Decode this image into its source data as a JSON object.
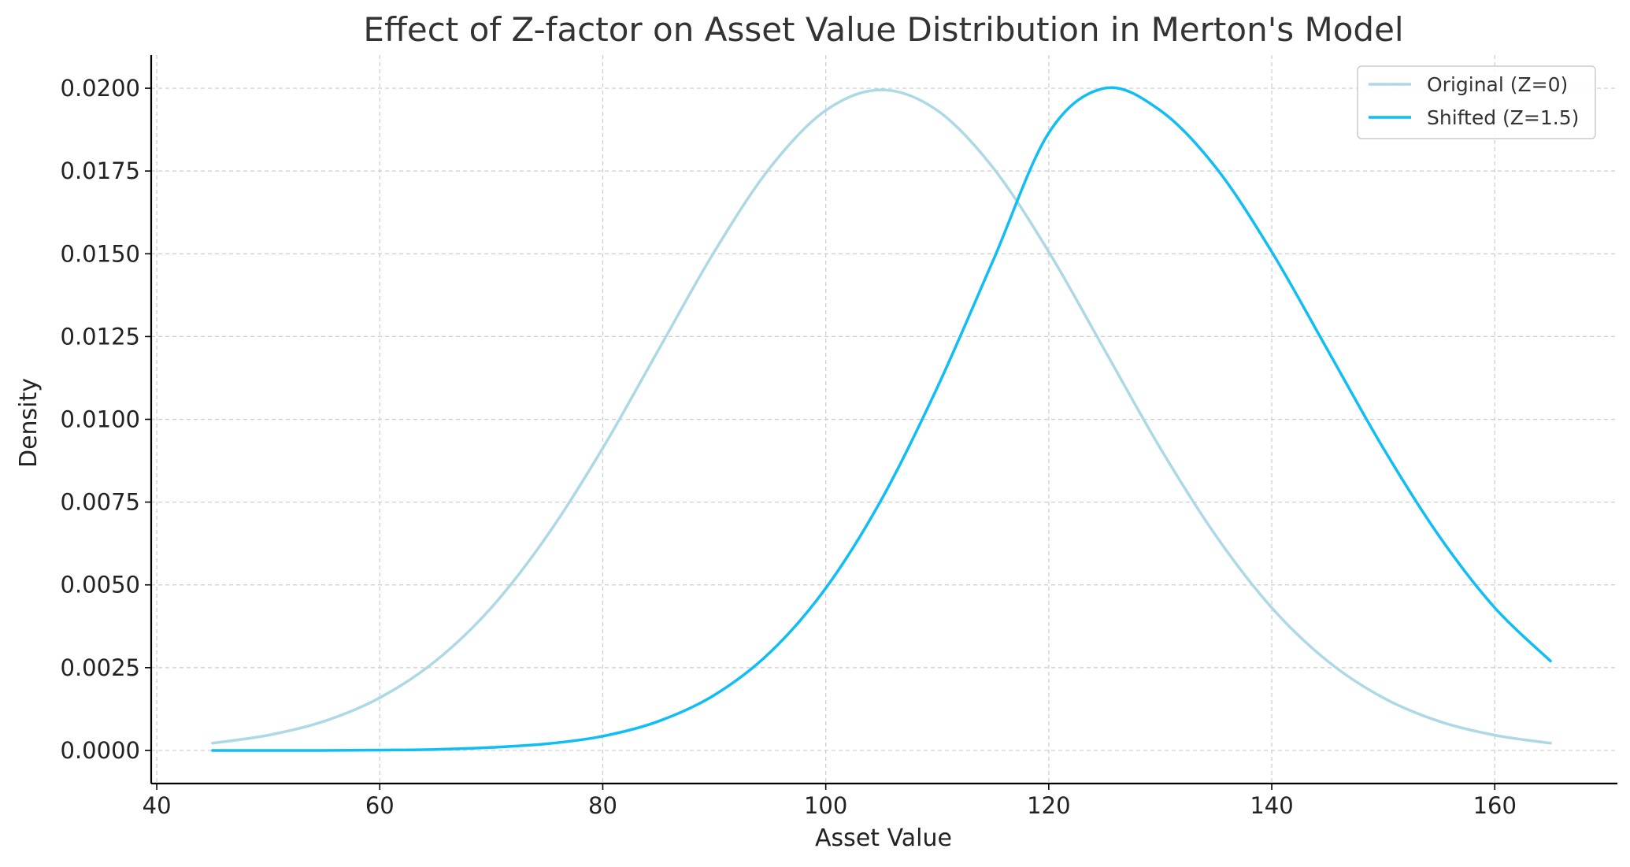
{
  "chart_data": {
    "type": "line",
    "title": "Effect of Z-factor on Asset Value Distribution in Merton's Model",
    "xlabel": "Asset Value",
    "ylabel": "Density",
    "xlim": [
      39.5,
      171
    ],
    "ylim": [
      -0.001,
      0.021
    ],
    "xticks": [
      40,
      60,
      80,
      100,
      120,
      140,
      160
    ],
    "xtick_labels": [
      "40",
      "60",
      "80",
      "100",
      "120",
      "140",
      "160"
    ],
    "yticks": [
      0,
      0.0025,
      0.005,
      0.0075,
      0.01,
      0.0125,
      0.015,
      0.0175,
      0.02
    ],
    "ytick_labels": [
      "0.0000",
      "0.0025",
      "0.0050",
      "0.0075",
      "0.0100",
      "0.0125",
      "0.0150",
      "0.0175",
      "0.0200"
    ],
    "grid": true,
    "legend_position": "top-right",
    "x": [
      45,
      50,
      55,
      60,
      65,
      70,
      75,
      80,
      85,
      90,
      95,
      100,
      105,
      110,
      115,
      120,
      125,
      130,
      135,
      140,
      145,
      150,
      155,
      160,
      165
    ],
    "series": [
      {
        "name": "Original (Z=0)",
        "color": "#add8e6",
        "values": [
          0.00022,
          0.00046,
          0.00088,
          0.00159,
          0.0027,
          0.00431,
          0.00648,
          0.00913,
          0.0121,
          0.01506,
          0.0176,
          0.01933,
          0.01995,
          0.01933,
          0.0176,
          0.01506,
          0.0121,
          0.00913,
          0.00648,
          0.00431,
          0.0027,
          0.00159,
          0.00088,
          0.00046,
          0.00022
        ]
      },
      {
        "name": "Shifted (Z=1.5)",
        "color": "#10bef5",
        "values": [
          0.0,
          0.0,
          0.0,
          1e-05,
          3e-05,
          9e-05,
          0.0002,
          0.00043,
          0.00088,
          0.00167,
          0.00296,
          0.0049,
          0.00758,
          0.01096,
          0.01479,
          0.01865,
          0.02,
          0.01933,
          0.0176,
          0.01506,
          0.0121,
          0.00913,
          0.00648,
          0.00431,
          0.0027
        ]
      }
    ]
  }
}
